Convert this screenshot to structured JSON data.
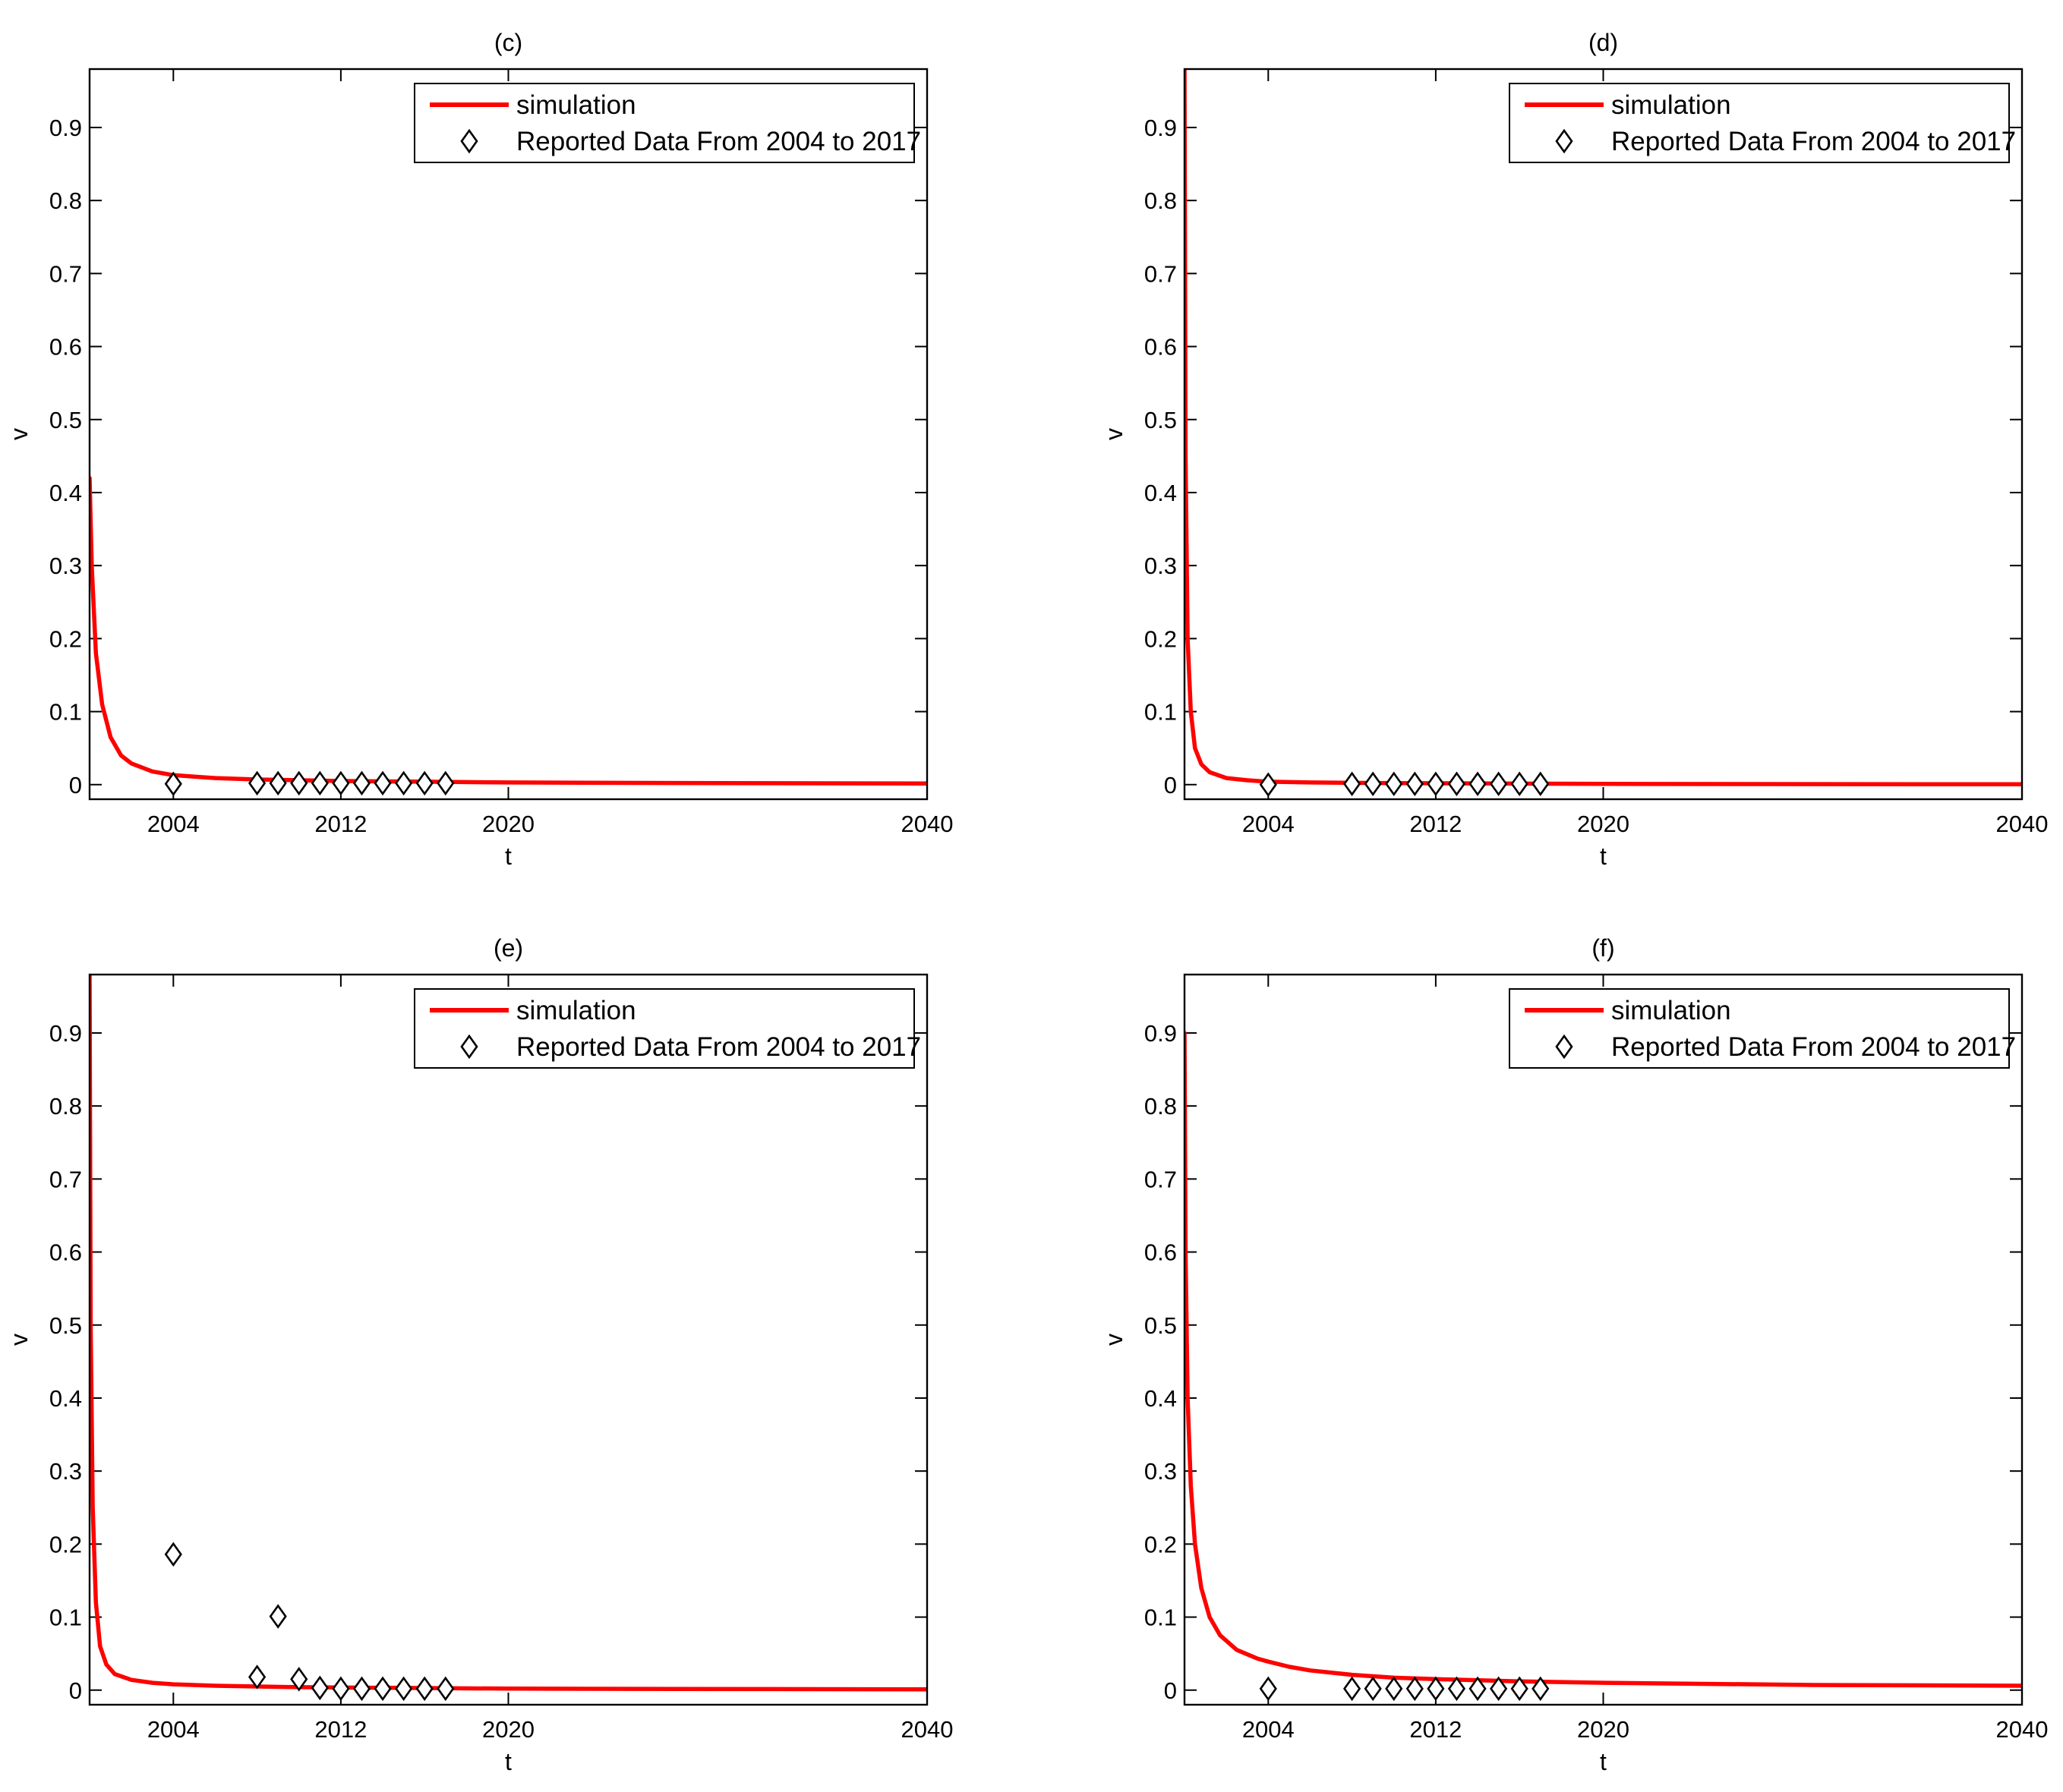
{
  "colors": {
    "simulation": "#ff0000",
    "data_marker": "#000000",
    "axes": "#000000",
    "background": "#ffffff"
  },
  "chart_data": [
    {
      "type": "line",
      "title": "(c)",
      "xlabel": "t",
      "ylabel": "v",
      "xlim": [
        2000,
        2040
      ],
      "ylim": [
        -0.02,
        0.98
      ],
      "xticks": [
        2004,
        2012,
        2020,
        2040
      ],
      "yticks": [
        0,
        0.1,
        0.2,
        0.3,
        0.4,
        0.5,
        0.6,
        0.7,
        0.8,
        0.9
      ],
      "grid": false,
      "legend": {
        "placement": "top-right",
        "entries": [
          "simulation",
          "Reported Data From 2004 to 2017"
        ]
      },
      "series": [
        {
          "name": "simulation",
          "style": "line",
          "x": [
            2000,
            2000.1,
            2000.3,
            2000.6,
            2001,
            2001.5,
            2002,
            2003,
            2004,
            2006,
            2008,
            2012,
            2016,
            2020,
            2030,
            2040
          ],
          "y": [
            0.42,
            0.3,
            0.18,
            0.11,
            0.065,
            0.04,
            0.029,
            0.018,
            0.013,
            0.009,
            0.007,
            0.005,
            0.004,
            0.003,
            0.002,
            0.0015
          ]
        },
        {
          "name": "Reported Data From 2004 to 2017",
          "style": "marker",
          "x": [
            2004,
            2008,
            2009,
            2010,
            2011,
            2012,
            2013,
            2014,
            2015,
            2016,
            2017
          ],
          "y": [
            0.001,
            0.002,
            0.002,
            0.002,
            0.002,
            0.002,
            0.002,
            0.002,
            0.002,
            0.002,
            0.002
          ]
        }
      ]
    },
    {
      "type": "line",
      "title": "(d)",
      "xlabel": "t",
      "ylabel": "v",
      "xlim": [
        2000,
        2040
      ],
      "ylim": [
        -0.02,
        0.98
      ],
      "xticks": [
        2004,
        2012,
        2020,
        2040
      ],
      "yticks": [
        0,
        0.1,
        0.2,
        0.3,
        0.4,
        0.5,
        0.6,
        0.7,
        0.8,
        0.9
      ],
      "grid": false,
      "legend": {
        "placement": "top-right",
        "entries": [
          "simulation",
          "Reported Data From 2004 to 2017"
        ]
      },
      "series": [
        {
          "name": "simulation",
          "style": "line",
          "x": [
            2000,
            2000.05,
            2000.15,
            2000.3,
            2000.5,
            2000.8,
            2001.2,
            2002,
            2003,
            2004,
            2006,
            2010,
            2020,
            2040
          ],
          "y": [
            0.98,
            0.45,
            0.2,
            0.1,
            0.05,
            0.028,
            0.017,
            0.009,
            0.006,
            0.004,
            0.003,
            0.002,
            0.001,
            0.0005
          ]
        },
        {
          "name": "Reported Data From 2004 to 2017",
          "style": "marker",
          "x": [
            2004,
            2008,
            2009,
            2010,
            2011,
            2012,
            2013,
            2014,
            2015,
            2016,
            2017
          ],
          "y": [
            0.0,
            0.001,
            0.001,
            0.001,
            0.001,
            0.001,
            0.001,
            0.001,
            0.001,
            0.001,
            0.001
          ]
        }
      ]
    },
    {
      "type": "line",
      "title": "(e)",
      "xlabel": "t",
      "ylabel": "v",
      "xlim": [
        2000,
        2040
      ],
      "ylim": [
        -0.02,
        0.98
      ],
      "xticks": [
        2004,
        2012,
        2020,
        2040
      ],
      "yticks": [
        0,
        0.1,
        0.2,
        0.3,
        0.4,
        0.5,
        0.6,
        0.7,
        0.8,
        0.9
      ],
      "grid": false,
      "legend": {
        "placement": "top-right",
        "entries": [
          "simulation",
          "Reported Data From 2004 to 2017"
        ]
      },
      "series": [
        {
          "name": "simulation",
          "style": "line",
          "x": [
            2000,
            2000.05,
            2000.15,
            2000.3,
            2000.5,
            2000.8,
            2001.2,
            2002,
            2003,
            2004,
            2006,
            2010,
            2020,
            2040
          ],
          "y": [
            0.98,
            0.5,
            0.25,
            0.12,
            0.06,
            0.035,
            0.022,
            0.014,
            0.01,
            0.008,
            0.006,
            0.004,
            0.002,
            0.001
          ]
        },
        {
          "name": "Reported Data From 2004 to 2017",
          "style": "marker",
          "x": [
            2004,
            2008,
            2009,
            2010,
            2011,
            2012,
            2013,
            2014,
            2015,
            2016,
            2017
          ],
          "y": [
            0.186,
            0.018,
            0.101,
            0.015,
            0.003,
            0.002,
            0.002,
            0.002,
            0.002,
            0.002,
            0.002
          ]
        }
      ]
    },
    {
      "type": "line",
      "title": "(f)",
      "xlabel": "t",
      "ylabel": "v",
      "xlim": [
        2000,
        2040
      ],
      "ylim": [
        -0.02,
        0.98
      ],
      "xticks": [
        2004,
        2012,
        2020,
        2040
      ],
      "yticks": [
        0,
        0.1,
        0.2,
        0.3,
        0.4,
        0.5,
        0.6,
        0.7,
        0.8,
        0.9
      ],
      "grid": false,
      "legend": {
        "placement": "top-right",
        "entries": [
          "simulation",
          "Reported Data From 2004 to 2017"
        ]
      },
      "series": [
        {
          "name": "simulation",
          "style": "line",
          "x": [
            2000,
            2000.05,
            2000.15,
            2000.3,
            2000.5,
            2000.8,
            2001.2,
            2001.7,
            2002.5,
            2003.5,
            2004,
            2005,
            2006,
            2008,
            2010,
            2012,
            2016,
            2020,
            2030,
            2040
          ],
          "y": [
            0.9,
            0.6,
            0.4,
            0.28,
            0.2,
            0.14,
            0.1,
            0.075,
            0.055,
            0.043,
            0.039,
            0.032,
            0.027,
            0.021,
            0.017,
            0.015,
            0.012,
            0.01,
            0.007,
            0.006
          ]
        },
        {
          "name": "Reported Data From 2004 to 2017",
          "style": "marker",
          "x": [
            2004,
            2008,
            2009,
            2010,
            2011,
            2012,
            2013,
            2014,
            2015,
            2016,
            2017
          ],
          "y": [
            0.002,
            0.002,
            0.002,
            0.002,
            0.002,
            0.002,
            0.002,
            0.002,
            0.002,
            0.002,
            0.002
          ]
        }
      ]
    }
  ]
}
